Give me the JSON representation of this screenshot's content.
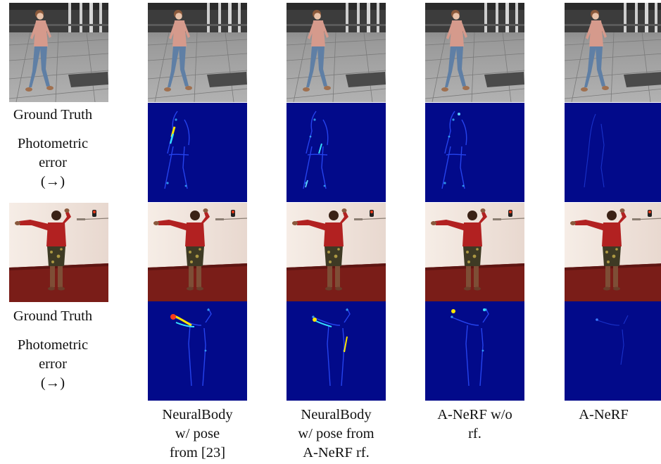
{
  "figure": {
    "row_labels": {
      "gt_1": "Ground Truth",
      "err_1": [
        "Photometric",
        "error",
        "(→)"
      ],
      "gt_2": "Ground Truth",
      "err_2": [
        "Photometric",
        "error",
        "(→)"
      ]
    },
    "columns": [
      {
        "label": [
          "NeuralBody",
          "w/ pose",
          "from [23]"
        ]
      },
      {
        "label": [
          "NeuralBody",
          "w/ pose from",
          "A-NeRF rf."
        ]
      },
      {
        "label": [
          "A-NeRF w/o",
          "rf."
        ]
      },
      {
        "label": [
          "A-NeRF"
        ]
      }
    ],
    "colors": {
      "heatmap_bg": "#020a8a",
      "pavement": "#8e8e8e",
      "sweater": "#d59a8c",
      "jeans": "#5f7fa5",
      "wall": "#efe4dc",
      "carpet": "#7a1d18",
      "red_shirt": "#b22121"
    }
  }
}
